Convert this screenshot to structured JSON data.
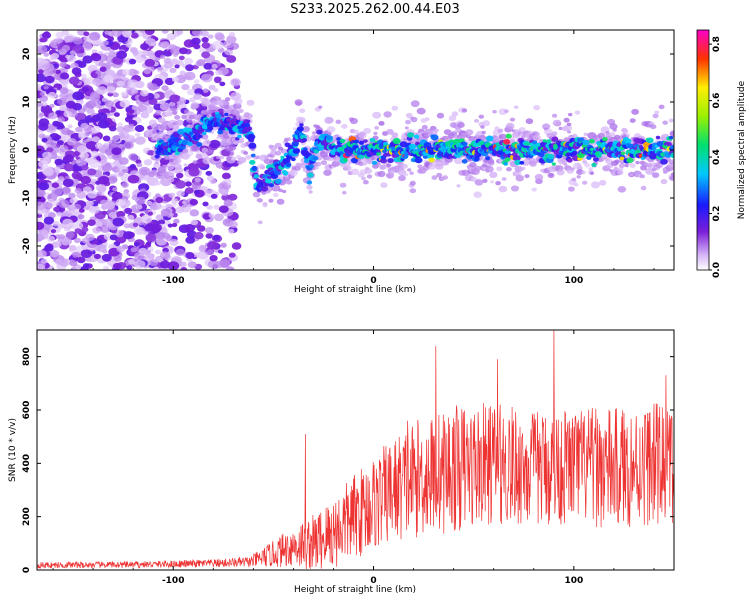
{
  "title": "S233.2025.262.00.44.E03",
  "colors": {
    "snr_line": "#ee3333",
    "spectral_dot_light": "#c9a6f2",
    "spectral_dot_dark": "#6a1ed0",
    "axes": "#000000",
    "background": "#ffffff"
  },
  "chart_data": [
    {
      "type": "heatmap",
      "name": "spectrogram",
      "title": "",
      "xlabel": "Height of straight line (km)",
      "ylabel": "Frequency (Hz)",
      "xlim": [
        -168,
        150
      ],
      "ylim": [
        -25,
        25
      ],
      "xticks": [
        -100,
        0,
        100
      ],
      "yticks": [
        -20,
        -10,
        0,
        10,
        20
      ],
      "grid": false,
      "description_points": {
        "ridge_x": [
          -108,
          -100,
          -90,
          -80,
          -70,
          -62,
          -58,
          -50,
          -44,
          -40,
          -36,
          -32,
          -28,
          -20,
          -10,
          0,
          20,
          40,
          60,
          80,
          100,
          120,
          140,
          150
        ],
        "ridge_freq": [
          0,
          1,
          3,
          6,
          5,
          4,
          -8,
          -5,
          -3,
          0,
          4,
          -5,
          2,
          0,
          0,
          0,
          0,
          0,
          0,
          0,
          0,
          0,
          0,
          0
        ]
      },
      "colorbar": {
        "label": "Normalized spectral amplitude",
        "range": [
          0.0,
          0.85
        ],
        "ticks": [
          0.0,
          0.2,
          0.4,
          0.6,
          0.8
        ]
      }
    },
    {
      "type": "line",
      "name": "snr",
      "title": "",
      "xlabel": "Height of straight line (km)",
      "ylabel": "SNR (10 * v/v)",
      "xlim": [
        -168,
        150
      ],
      "ylim": [
        0,
        900
      ],
      "xticks": [
        -100,
        0,
        100
      ],
      "yticks": [
        0,
        200,
        400,
        600,
        800
      ],
      "grid": false,
      "envelope": {
        "x": [
          -168,
          -120,
          -80,
          -62,
          -50,
          -40,
          -30,
          -20,
          -10,
          0,
          10,
          20,
          30,
          40,
          60,
          80,
          100,
          120,
          140,
          150
        ],
        "median": [
          18,
          20,
          25,
          30,
          60,
          90,
          100,
          140,
          200,
          250,
          300,
          340,
          360,
          380,
          400,
          380,
          390,
          380,
          400,
          390
        ],
        "spread": [
          12,
          12,
          15,
          20,
          50,
          80,
          110,
          140,
          160,
          180,
          200,
          220,
          230,
          240,
          230,
          220,
          220,
          230,
          230,
          220
        ]
      },
      "peaks": [
        {
          "x": -34,
          "y": 510
        },
        {
          "x": 17,
          "y": 560
        },
        {
          "x": 31,
          "y": 840
        },
        {
          "x": 62,
          "y": 790
        },
        {
          "x": 90,
          "y": 900
        },
        {
          "x": 146,
          "y": 730
        }
      ]
    }
  ]
}
